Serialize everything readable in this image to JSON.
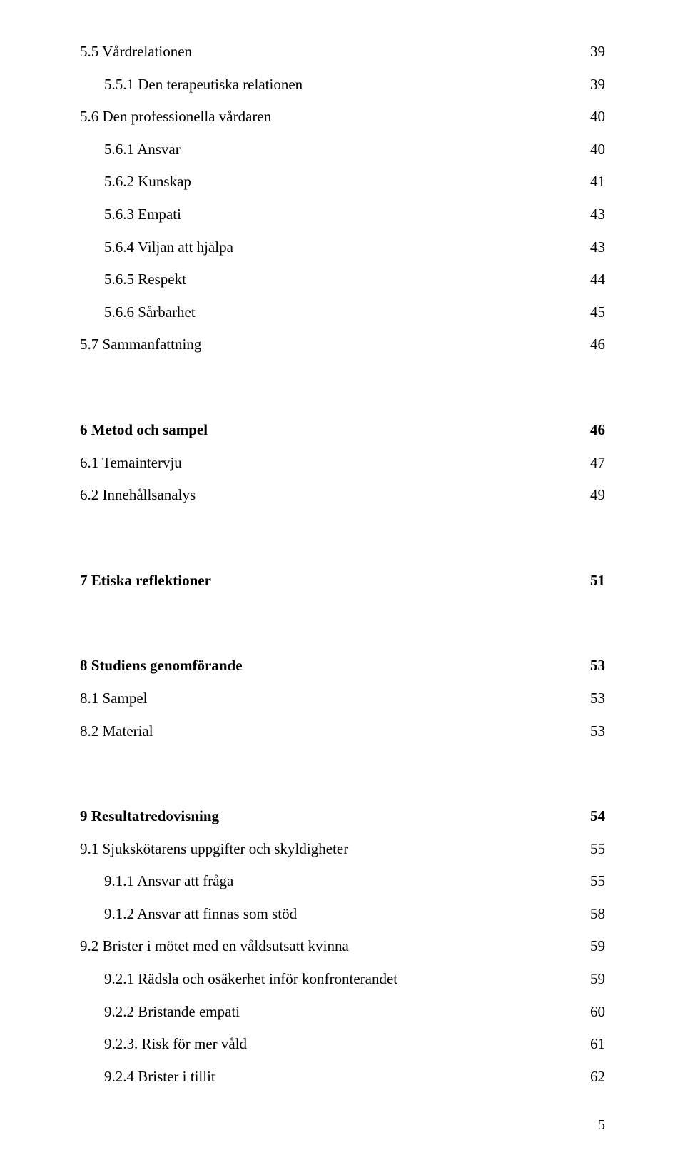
{
  "entries": [
    {
      "label": "5.5 Vårdrelationen",
      "page": "39",
      "bold": false,
      "lvl": "lvl0",
      "gapAfter": "gap-sm"
    },
    {
      "label": "5.5.1 Den terapeutiska relationen",
      "page": "39",
      "bold": false,
      "lvl": "lvl1",
      "gapAfter": "gap-sm"
    },
    {
      "label": "5.6 Den professionella vårdaren",
      "page": "40",
      "bold": false,
      "lvl": "lvl0",
      "gapAfter": "gap-sm"
    },
    {
      "label": "5.6.1 Ansvar",
      "page": "40",
      "bold": false,
      "lvl": "lvl1",
      "gapAfter": "gap-sm"
    },
    {
      "label": "5.6.2 Kunskap",
      "page": "41",
      "bold": false,
      "lvl": "lvl1",
      "gapAfter": "gap-sm"
    },
    {
      "label": "5.6.3 Empati",
      "page": "43",
      "bold": false,
      "lvl": "lvl1",
      "gapAfter": "gap-sm"
    },
    {
      "label": "5.6.4 Viljan att hjälpa",
      "page": "43",
      "bold": false,
      "lvl": "lvl1",
      "gapAfter": "gap-sm"
    },
    {
      "label": "5.6.5 Respekt",
      "page": "44",
      "bold": false,
      "lvl": "lvl1",
      "gapAfter": "gap-sm"
    },
    {
      "label": "5.6.6 Sårbarhet",
      "page": "45",
      "bold": false,
      "lvl": "lvl1",
      "gapAfter": "gap-sm"
    },
    {
      "label": "5.7 Sammanfattning",
      "page": "46",
      "bold": false,
      "lvl": "lvl0",
      "gapAfter": "gap-lg"
    },
    {
      "label": "6 Metod och sampel",
      "page": "46",
      "bold": true,
      "lvl": "lvl0",
      "gapAfter": "gap-sm"
    },
    {
      "label": "6.1 Temaintervju",
      "page": "47",
      "bold": false,
      "lvl": "lvl0",
      "gapAfter": "gap-sm"
    },
    {
      "label": "6.2 Innehållsanalys",
      "page": "49",
      "bold": false,
      "lvl": "lvl0",
      "gapAfter": "gap-lg"
    },
    {
      "label": "7 Etiska reflektioner",
      "page": "51",
      "bold": true,
      "lvl": "lvl0",
      "gapAfter": "gap-lg"
    },
    {
      "label": "8 Studiens genomförande",
      "page": "53",
      "bold": true,
      "lvl": "lvl0",
      "gapAfter": "gap-sm"
    },
    {
      "label": "8.1 Sampel",
      "page": "53",
      "bold": false,
      "lvl": "lvl0",
      "gapAfter": "gap-sm"
    },
    {
      "label": "8.2 Material",
      "page": "53",
      "bold": false,
      "lvl": "lvl0",
      "gapAfter": "gap-lg"
    },
    {
      "label": "9 Resultatredovisning",
      "page": "54",
      "bold": true,
      "lvl": "lvl0",
      "gapAfter": "gap-sm"
    },
    {
      "label": "9.1 Sjukskötarens uppgifter och skyldigheter",
      "page": "55",
      "bold": false,
      "lvl": "lvl0",
      "gapAfter": "gap-sm"
    },
    {
      "label": "9.1.1 Ansvar att fråga",
      "page": "55",
      "bold": false,
      "lvl": "lvl1",
      "gapAfter": "gap-sm"
    },
    {
      "label": "9.1.2 Ansvar att finnas som stöd",
      "page": "58",
      "bold": false,
      "lvl": "lvl1",
      "gapAfter": "gap-sm"
    },
    {
      "label": "9.2 Brister i mötet med en våldsutsatt kvinna",
      "page": "59",
      "bold": false,
      "lvl": "lvl0",
      "gapAfter": "gap-sm"
    },
    {
      "label": "9.2.1 Rädsla och osäkerhet inför konfronterandet",
      "page": "59",
      "bold": false,
      "lvl": "lvl1",
      "gapAfter": "gap-sm"
    },
    {
      "label": "9.2.2 Bristande empati",
      "page": "60",
      "bold": false,
      "lvl": "lvl1",
      "gapAfter": "gap-sm"
    },
    {
      "label": "9.2.3. Risk för mer våld",
      "page": "61",
      "bold": false,
      "lvl": "lvl1",
      "gapAfter": "gap-sm"
    },
    {
      "label": "9.2.4 Brister i tillit",
      "page": "62",
      "bold": false,
      "lvl": "lvl1",
      "gapAfter": ""
    }
  ],
  "pageNumber": "5"
}
